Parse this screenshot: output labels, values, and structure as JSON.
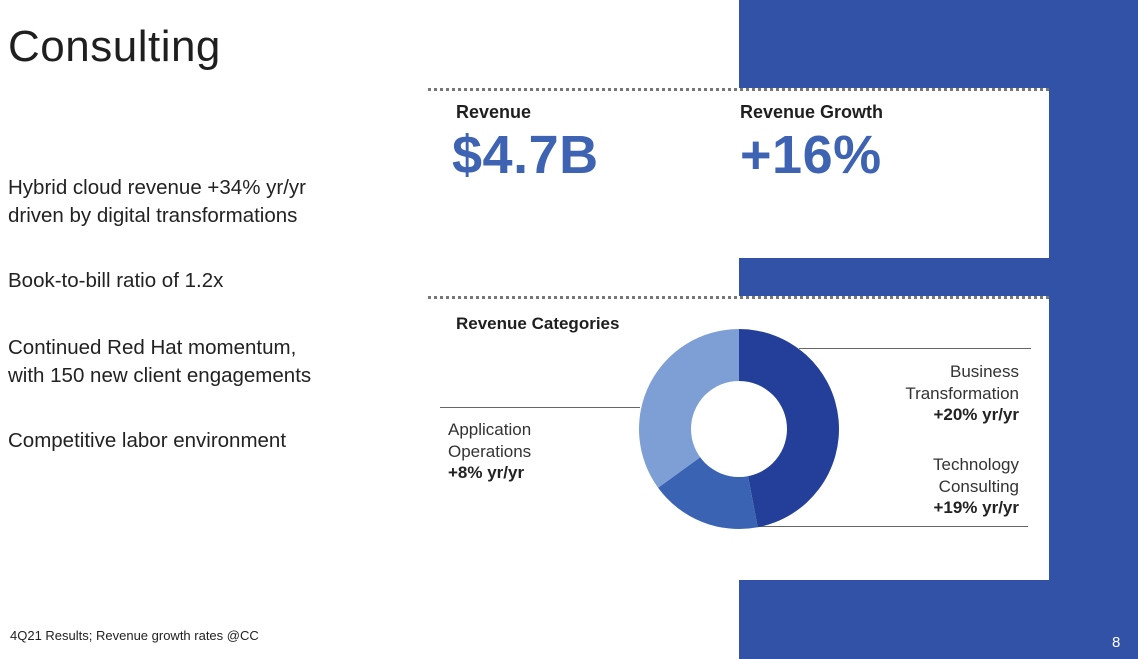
{
  "title": "Consulting",
  "bullets": [
    "Hybrid cloud revenue +34% yr/yr\ndriven by digital transformations",
    "Book-to-bill ratio of 1.2x",
    "Continued Red Hat momentum,\nwith 150 new client engagements",
    "Competitive labor environment"
  ],
  "kpis": {
    "revenue_label": "Revenue",
    "revenue_value": "$4.7B",
    "growth_label": "Revenue Growth",
    "growth_value": "+16%"
  },
  "categories_title": "Revenue Categories",
  "footnote": "4Q21 Results;  Revenue growth rates @CC",
  "page_number": "8",
  "chart_data": {
    "type": "pie",
    "title": "Revenue Categories",
    "donut": true,
    "slices": [
      {
        "name": "Business Transformation",
        "share": 0.47,
        "growth": "+20% yr/yr",
        "color": "#233f99"
      },
      {
        "name": "Technology Consulting",
        "share": 0.18,
        "growth": "+19% yr/yr",
        "color": "#3a64b3"
      },
      {
        "name": "Application Operations",
        "share": 0.35,
        "growth": "+8% yr/yr",
        "color": "#7e9fd5"
      }
    ]
  },
  "labels": {
    "bt_line1": "Business",
    "bt_line2": "Transformation",
    "tc_line1": "Technology",
    "tc_line2": "Consulting",
    "ao_line1": "Application",
    "ao_line2": "Operations"
  },
  "colors": {
    "brand_blue": "#3152a6",
    "kpi_blue": "#3d63b2"
  }
}
